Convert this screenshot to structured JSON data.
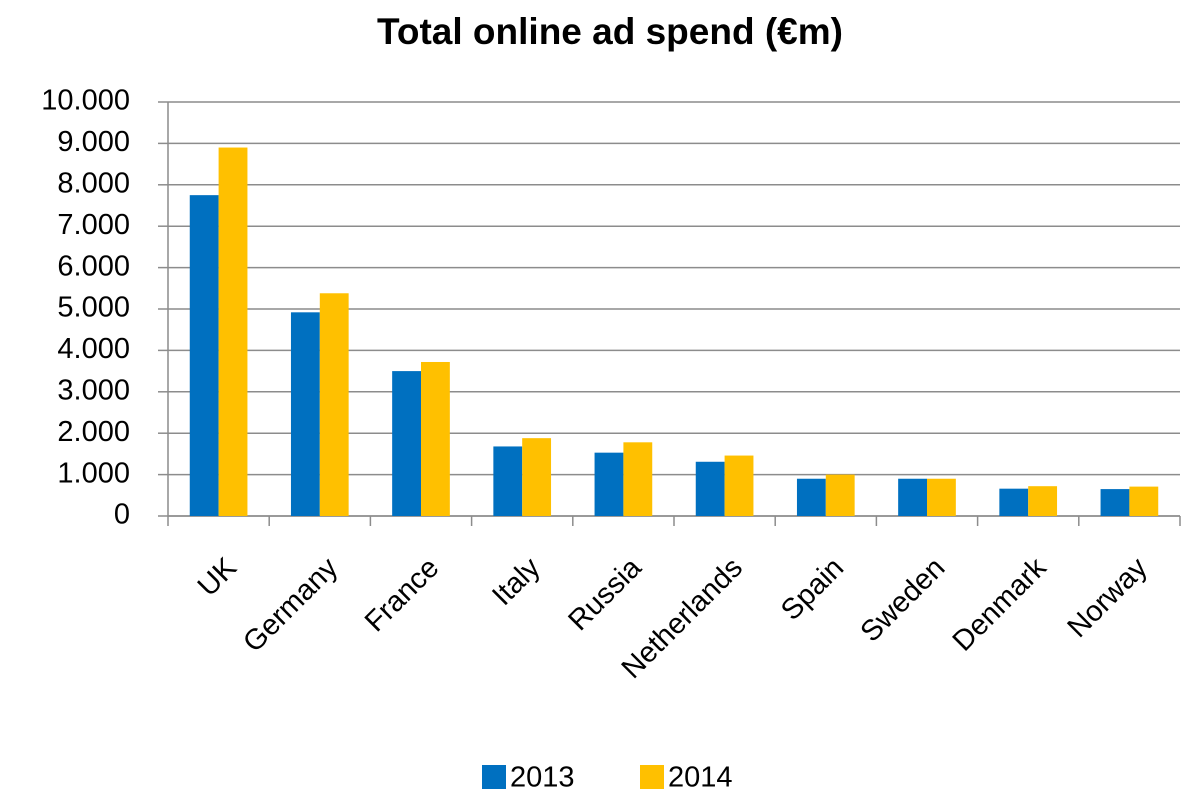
{
  "chart_data": {
    "type": "bar",
    "title": "Total online ad spend (€m)",
    "categories": [
      "UK",
      "Germany",
      "France",
      "Italy",
      "Russia",
      "Netherlands",
      "Spain",
      "Sweden",
      "Denmark",
      "Norway"
    ],
    "series": [
      {
        "name": "2013",
        "color": "#0070c0",
        "values": [
          7750,
          4920,
          3500,
          1680,
          1530,
          1310,
          900,
          900,
          660,
          650
        ]
      },
      {
        "name": "2014",
        "color": "#ffc000",
        "values": [
          8900,
          5380,
          3720,
          1880,
          1780,
          1460,
          1000,
          900,
          720,
          710
        ]
      }
    ],
    "ylim": [
      0,
      10000
    ],
    "yticks": [
      0,
      {
        "value": 1000,
        "label": "1.000"
      },
      {
        "value": 2000,
        "label": "2.000"
      },
      {
        "value": 3000,
        "label": "3.000"
      },
      {
        "value": 4000,
        "label": "4.000"
      },
      {
        "value": 5000,
        "label": "5.000"
      },
      {
        "value": 6000,
        "label": "6.000"
      },
      {
        "value": 7000,
        "label": "7.000"
      },
      {
        "value": 8000,
        "label": "8.000"
      },
      {
        "value": 9000,
        "label": "9.000"
      },
      {
        "value": 10000,
        "label": "10.000"
      }
    ],
    "grid": true,
    "legend": "bottom"
  }
}
